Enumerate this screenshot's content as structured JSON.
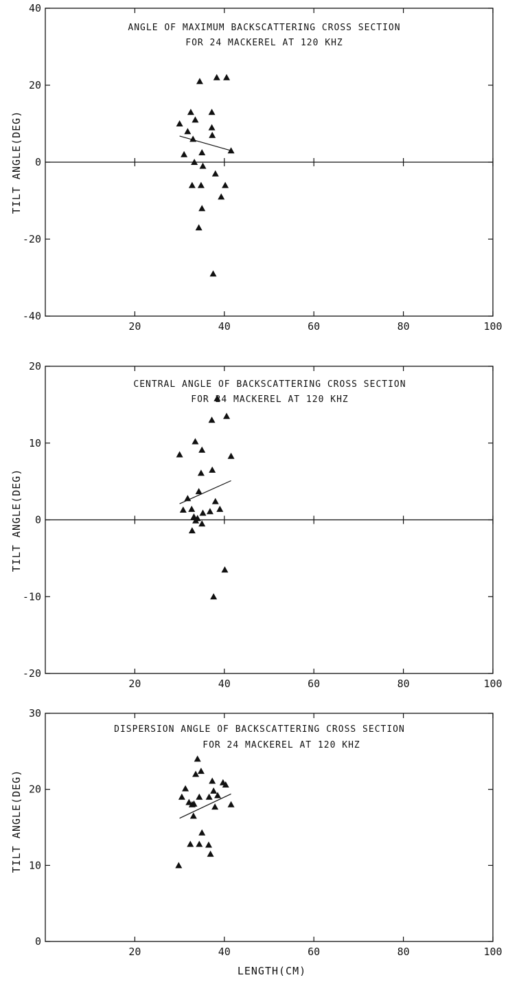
{
  "chart_data": [
    {
      "type": "scatter",
      "title_lines": [
        "ANGLE OF MAXIMUM BACKSCATTERING CROSS SECTION",
        "FOR 24 MACKEREL AT 120 KHZ"
      ],
      "xlabel": "",
      "ylabel": "TILT ANGLE(DEG)",
      "xlim": [
        0,
        100
      ],
      "ylim": [
        -40,
        40
      ],
      "xticks": [
        20,
        40,
        60,
        80,
        100
      ],
      "yticks": [
        -40,
        -20,
        0,
        20,
        40
      ],
      "zero_line": true,
      "fit_line": {
        "x": [
          30,
          41.5
        ],
        "y": [
          6.8,
          3
        ]
      },
      "points": [
        {
          "x": 30,
          "y": 10
        },
        {
          "x": 31,
          "y": 2
        },
        {
          "x": 31.8,
          "y": 8
        },
        {
          "x": 32.5,
          "y": 13
        },
        {
          "x": 33,
          "y": 6
        },
        {
          "x": 33.5,
          "y": 11
        },
        {
          "x": 33.3,
          "y": 0
        },
        {
          "x": 34.5,
          "y": 21
        },
        {
          "x": 35,
          "y": 2.5
        },
        {
          "x": 35.2,
          "y": -1
        },
        {
          "x": 32.8,
          "y": -6
        },
        {
          "x": 34.8,
          "y": -6
        },
        {
          "x": 35,
          "y": -12
        },
        {
          "x": 34.3,
          "y": -17
        },
        {
          "x": 37.5,
          "y": -29
        },
        {
          "x": 37.2,
          "y": 13
        },
        {
          "x": 37.2,
          "y": 9
        },
        {
          "x": 37.3,
          "y": 7
        },
        {
          "x": 38.3,
          "y": 22
        },
        {
          "x": 40.5,
          "y": 22
        },
        {
          "x": 41.5,
          "y": 3
        },
        {
          "x": 38,
          "y": -3
        },
        {
          "x": 40.2,
          "y": -6
        },
        {
          "x": 39.3,
          "y": -9
        }
      ]
    },
    {
      "type": "scatter",
      "title_lines": [
        "CENTRAL ANGLE OF BACKSCATTERING CROSS SECTION",
        "FOR 24 MACKEREL AT 120 KHZ"
      ],
      "xlabel": "",
      "ylabel": "TILT ANGLE(DEG)",
      "xlim": [
        0,
        100
      ],
      "ylim": [
        -20,
        20
      ],
      "xticks": [
        20,
        40,
        60,
        80,
        100
      ],
      "yticks": [
        -20,
        -10,
        0,
        10,
        20
      ],
      "zero_line": true,
      "fit_line": {
        "x": [
          30,
          41.5
        ],
        "y": [
          2.1,
          5.1
        ]
      },
      "points": [
        {
          "x": 30,
          "y": 8.5
        },
        {
          "x": 30.8,
          "y": 1.3
        },
        {
          "x": 31.8,
          "y": 2.8
        },
        {
          "x": 32.7,
          "y": 1.4
        },
        {
          "x": 32.8,
          "y": -1.4
        },
        {
          "x": 33.2,
          "y": 0.4
        },
        {
          "x": 33.5,
          "y": 10.2
        },
        {
          "x": 33.6,
          "y": -0.1
        },
        {
          "x": 34,
          "y": 0.2
        },
        {
          "x": 34.3,
          "y": 3.7
        },
        {
          "x": 34.8,
          "y": 6.1
        },
        {
          "x": 35,
          "y": 9.1
        },
        {
          "x": 35.2,
          "y": 0.9
        },
        {
          "x": 35,
          "y": -0.5
        },
        {
          "x": 36.8,
          "y": 1.1
        },
        {
          "x": 37.2,
          "y": 13
        },
        {
          "x": 37.3,
          "y": 6.5
        },
        {
          "x": 37.6,
          "y": -10
        },
        {
          "x": 38,
          "y": 2.4
        },
        {
          "x": 38.4,
          "y": 15.8
        },
        {
          "x": 39,
          "y": 1.4
        },
        {
          "x": 40.1,
          "y": -6.5
        },
        {
          "x": 40.5,
          "y": 13.5
        },
        {
          "x": 41.5,
          "y": 8.3
        }
      ]
    },
    {
      "type": "scatter",
      "title_lines": [
        "DISPERSION ANGLE OF BACKSCATTERING CROSS SECTION",
        "FOR 24 MACKEREL AT 120 KHZ"
      ],
      "xlabel": "LENGTH(CM)",
      "ylabel": "TILT ANGLE(DEG)",
      "xlim": [
        0,
        100
      ],
      "ylim": [
        0,
        30
      ],
      "xticks": [
        20,
        40,
        60,
        80,
        100
      ],
      "yticks": [
        0,
        10,
        20,
        30
      ],
      "zero_line": false,
      "fit_line": {
        "x": [
          30,
          41.5
        ],
        "y": [
          16.2,
          19.4
        ]
      },
      "points": [
        {
          "x": 29.8,
          "y": 10
        },
        {
          "x": 30.5,
          "y": 19
        },
        {
          "x": 31.3,
          "y": 20.1
        },
        {
          "x": 32.1,
          "y": 18.3
        },
        {
          "x": 32.4,
          "y": 12.8
        },
        {
          "x": 32.8,
          "y": 18
        },
        {
          "x": 33.1,
          "y": 16.5
        },
        {
          "x": 33.6,
          "y": 22
        },
        {
          "x": 34,
          "y": 24
        },
        {
          "x": 34.4,
          "y": 19
        },
        {
          "x": 34.4,
          "y": 12.8
        },
        {
          "x": 34.8,
          "y": 22.4
        },
        {
          "x": 35,
          "y": 14.3
        },
        {
          "x": 36.5,
          "y": 12.7
        },
        {
          "x": 36.6,
          "y": 19
        },
        {
          "x": 36.9,
          "y": 11.5
        },
        {
          "x": 37.3,
          "y": 21.1
        },
        {
          "x": 37.6,
          "y": 19.8
        },
        {
          "x": 37.9,
          "y": 17.7
        },
        {
          "x": 38.5,
          "y": 19.2
        },
        {
          "x": 39.7,
          "y": 20.9
        },
        {
          "x": 40.3,
          "y": 20.6
        },
        {
          "x": 41.5,
          "y": 18
        },
        {
          "x": 33.2,
          "y": 18.1
        }
      ]
    }
  ]
}
